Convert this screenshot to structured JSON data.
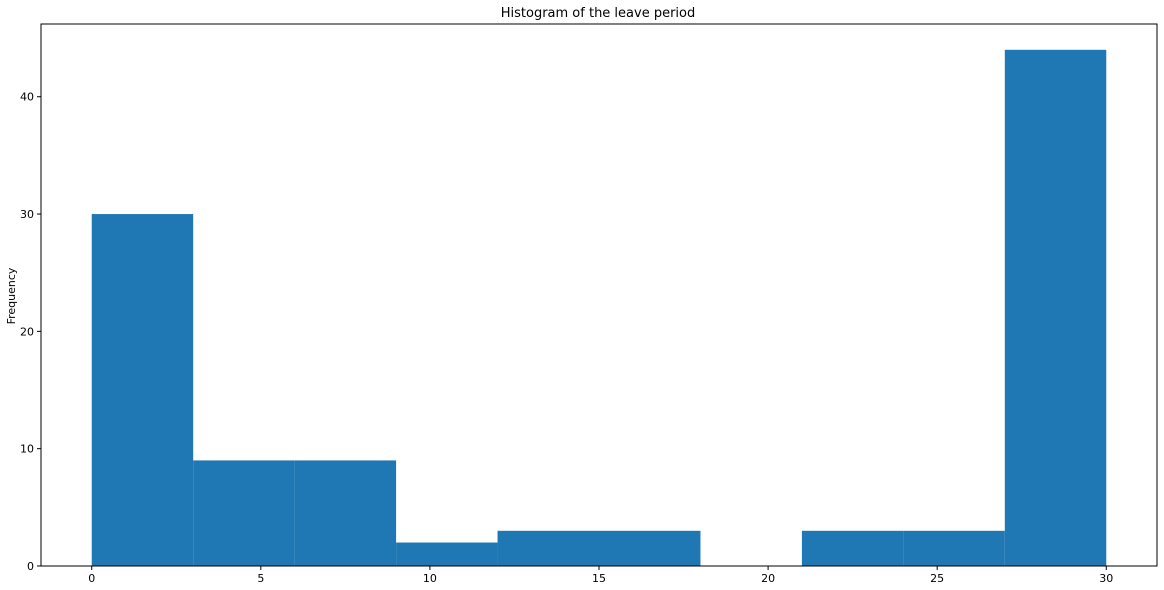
{
  "chart_data": {
    "type": "bar",
    "title": "Histogram of the leave period",
    "xlabel": "",
    "ylabel": "Frequency",
    "bins": [
      {
        "start": 0,
        "end": 3,
        "count": 30
      },
      {
        "start": 3,
        "end": 6,
        "count": 9
      },
      {
        "start": 6,
        "end": 9,
        "count": 9
      },
      {
        "start": 9,
        "end": 12,
        "count": 2
      },
      {
        "start": 12,
        "end": 15,
        "count": 3
      },
      {
        "start": 15,
        "end": 18,
        "count": 3
      },
      {
        "start": 18,
        "end": 21,
        "count": 0
      },
      {
        "start": 21,
        "end": 24,
        "count": 3
      },
      {
        "start": 24,
        "end": 27,
        "count": 3
      },
      {
        "start": 27,
        "end": 30,
        "count": 44
      }
    ],
    "xlim": [
      -1.5,
      31.5
    ],
    "ylim": [
      0,
      46.2
    ],
    "xticks": [
      0,
      5,
      10,
      15,
      20,
      25,
      30
    ],
    "yticks": [
      0,
      10,
      20,
      30,
      40
    ],
    "bar_color": "#1f77b4",
    "grid": false,
    "legend": "none"
  }
}
